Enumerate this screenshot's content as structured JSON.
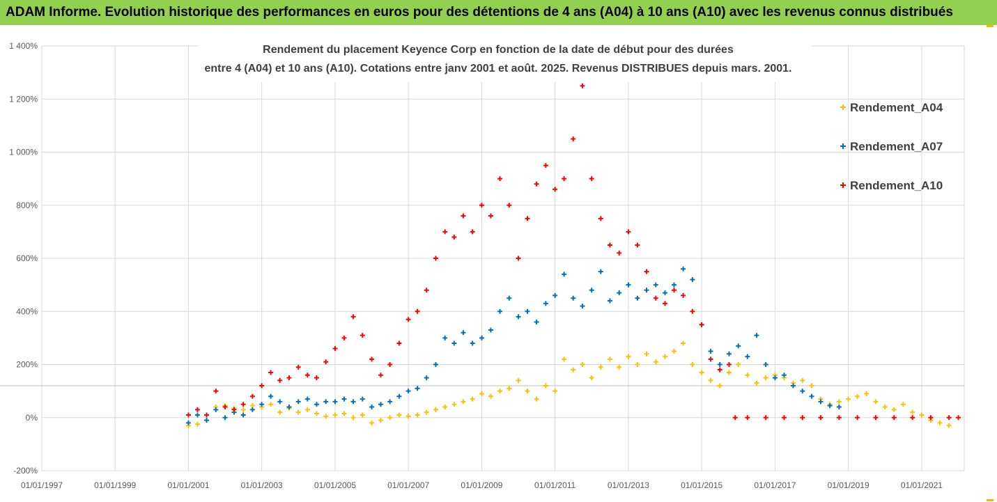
{
  "banner": {
    "title": "ADAM Informe. Evolution historique des performances en euros pour des détentions de 4 ans (A04) à 10 ans (A10) avec les revenus connus distribués"
  },
  "colors": {
    "banner_bg": "#92d050",
    "gridline": "#d9d9d9",
    "reference_line": "#bfbfbf",
    "series_A04": "#ffc000",
    "series_A07": "#0070c0",
    "series_A10": "#ff0000"
  },
  "chart_data": {
    "type": "scatter",
    "title": "Rendement du placement Keyence Corp en fonction de la date de début pour des durées",
    "subtitle": "entre 4 (A04) et 10 ans (A10). Cotations entre janv 2001 et août. 2025. Revenus DISTRIBUES depuis mars. 2001.",
    "xlabel": "",
    "ylabel": "",
    "x_axis": "date",
    "xlim": [
      "1997-01-01",
      "2022-03-01"
    ],
    "x_ticks": [
      "1997-01-01",
      "1999-01-01",
      "2001-01-01",
      "2003-01-01",
      "2005-01-01",
      "2007-01-01",
      "2009-01-01",
      "2011-01-01",
      "2013-01-01",
      "2015-01-01",
      "2017-01-01",
      "2019-01-01",
      "2021-01-01"
    ],
    "x_tick_labels": [
      "01/01/1997",
      "01/01/1999",
      "01/01/2001",
      "01/01/2003",
      "01/01/2005",
      "01/01/2007",
      "01/01/2009",
      "01/01/2011",
      "01/01/2013",
      "01/01/2015",
      "01/01/2017",
      "01/01/2019",
      "01/01/2021"
    ],
    "ylim": [
      -200,
      1400
    ],
    "y_ticks": [
      -200,
      0,
      200,
      400,
      600,
      800,
      1000,
      1200,
      1400
    ],
    "y_tick_labels": [
      "-200%",
      "0%",
      "200%",
      "400%",
      "600%",
      "800%",
      "1 000%",
      "1 200%",
      "1 400%"
    ],
    "grid": true,
    "reference_line_y": 120,
    "legend_position": "right",
    "marker": "+",
    "series": [
      {
        "name": "Rendement_A04",
        "color": "#ffc000",
        "points": [
          [
            "2001-01-01",
            -30
          ],
          [
            "2001-04-01",
            -25
          ],
          [
            "2001-07-01",
            -10
          ],
          [
            "2001-10-01",
            40
          ],
          [
            "2002-01-01",
            45
          ],
          [
            "2002-04-01",
            35
          ],
          [
            "2002-07-01",
            30
          ],
          [
            "2002-10-01",
            45
          ],
          [
            "2003-01-01",
            40
          ],
          [
            "2003-04-01",
            50
          ],
          [
            "2003-07-01",
            20
          ],
          [
            "2003-10-01",
            35
          ],
          [
            "2004-01-01",
            20
          ],
          [
            "2004-04-01",
            30
          ],
          [
            "2004-07-01",
            15
          ],
          [
            "2004-10-01",
            5
          ],
          [
            "2005-01-01",
            10
          ],
          [
            "2005-04-01",
            15
          ],
          [
            "2005-07-01",
            0
          ],
          [
            "2005-10-01",
            10
          ],
          [
            "2006-01-01",
            -20
          ],
          [
            "2006-04-01",
            -10
          ],
          [
            "2006-07-01",
            0
          ],
          [
            "2006-10-01",
            10
          ],
          [
            "2007-01-01",
            5
          ],
          [
            "2007-04-01",
            10
          ],
          [
            "2007-07-01",
            20
          ],
          [
            "2007-10-01",
            30
          ],
          [
            "2008-01-01",
            40
          ],
          [
            "2008-04-01",
            50
          ],
          [
            "2008-07-01",
            60
          ],
          [
            "2008-10-01",
            70
          ],
          [
            "2009-01-01",
            90
          ],
          [
            "2009-04-01",
            80
          ],
          [
            "2009-07-01",
            100
          ],
          [
            "2009-10-01",
            110
          ],
          [
            "2010-01-01",
            140
          ],
          [
            "2010-04-01",
            100
          ],
          [
            "2010-07-01",
            70
          ],
          [
            "2010-10-01",
            120
          ],
          [
            "2011-01-01",
            100
          ],
          [
            "2011-04-01",
            220
          ],
          [
            "2011-07-01",
            180
          ],
          [
            "2011-10-01",
            200
          ],
          [
            "2012-01-01",
            150
          ],
          [
            "2012-04-01",
            190
          ],
          [
            "2012-07-01",
            220
          ],
          [
            "2012-10-01",
            190
          ],
          [
            "2013-01-01",
            230
          ],
          [
            "2013-04-01",
            200
          ],
          [
            "2013-07-01",
            240
          ],
          [
            "2013-10-01",
            210
          ],
          [
            "2014-01-01",
            230
          ],
          [
            "2014-04-01",
            250
          ],
          [
            "2014-07-01",
            280
          ],
          [
            "2014-10-01",
            200
          ],
          [
            "2015-01-01",
            170
          ],
          [
            "2015-04-01",
            140
          ],
          [
            "2015-07-01",
            120
          ],
          [
            "2015-10-01",
            170
          ],
          [
            "2016-01-01",
            200
          ],
          [
            "2016-04-01",
            160
          ],
          [
            "2016-07-01",
            130
          ],
          [
            "2016-10-01",
            150
          ],
          [
            "2017-01-01",
            160
          ],
          [
            "2017-04-01",
            150
          ],
          [
            "2017-07-01",
            130
          ],
          [
            "2017-10-01",
            140
          ],
          [
            "2018-01-01",
            120
          ],
          [
            "2018-04-01",
            70
          ],
          [
            "2018-07-01",
            50
          ],
          [
            "2018-10-01",
            60
          ],
          [
            "2019-01-01",
            70
          ],
          [
            "2019-04-01",
            80
          ],
          [
            "2019-07-01",
            90
          ],
          [
            "2019-10-01",
            60
          ],
          [
            "2020-01-01",
            40
          ],
          [
            "2020-04-01",
            30
          ],
          [
            "2020-07-01",
            50
          ],
          [
            "2020-10-01",
            20
          ],
          [
            "2021-01-01",
            10
          ],
          [
            "2021-04-01",
            -10
          ],
          [
            "2021-07-01",
            -20
          ],
          [
            "2021-10-01",
            -30
          ]
        ]
      },
      {
        "name": "Rendement_A07",
        "color": "#0070c0",
        "points": [
          [
            "2001-01-01",
            -20
          ],
          [
            "2001-04-01",
            10
          ],
          [
            "2001-07-01",
            -10
          ],
          [
            "2001-10-01",
            30
          ],
          [
            "2002-01-01",
            0
          ],
          [
            "2002-04-01",
            20
          ],
          [
            "2002-07-01",
            10
          ],
          [
            "2002-10-01",
            30
          ],
          [
            "2003-01-01",
            50
          ],
          [
            "2003-04-01",
            80
          ],
          [
            "2003-07-01",
            60
          ],
          [
            "2003-10-01",
            40
          ],
          [
            "2004-01-01",
            60
          ],
          [
            "2004-04-01",
            70
          ],
          [
            "2004-07-01",
            50
          ],
          [
            "2004-10-01",
            60
          ],
          [
            "2005-01-01",
            60
          ],
          [
            "2005-04-01",
            70
          ],
          [
            "2005-07-01",
            60
          ],
          [
            "2005-10-01",
            70
          ],
          [
            "2006-01-01",
            40
          ],
          [
            "2006-04-01",
            50
          ],
          [
            "2006-07-01",
            60
          ],
          [
            "2006-10-01",
            80
          ],
          [
            "2007-01-01",
            100
          ],
          [
            "2007-04-01",
            110
          ],
          [
            "2007-07-01",
            150
          ],
          [
            "2007-10-01",
            200
          ],
          [
            "2008-01-01",
            300
          ],
          [
            "2008-04-01",
            280
          ],
          [
            "2008-07-01",
            320
          ],
          [
            "2008-10-01",
            280
          ],
          [
            "2009-01-01",
            300
          ],
          [
            "2009-04-01",
            330
          ],
          [
            "2009-07-01",
            400
          ],
          [
            "2009-10-01",
            450
          ],
          [
            "2010-01-01",
            380
          ],
          [
            "2010-04-01",
            400
          ],
          [
            "2010-07-01",
            360
          ],
          [
            "2010-10-01",
            430
          ],
          [
            "2011-01-01",
            460
          ],
          [
            "2011-04-01",
            540
          ],
          [
            "2011-07-01",
            450
          ],
          [
            "2011-10-01",
            420
          ],
          [
            "2012-01-01",
            480
          ],
          [
            "2012-04-01",
            550
          ],
          [
            "2012-07-01",
            440
          ],
          [
            "2012-10-01",
            470
          ],
          [
            "2013-01-01",
            500
          ],
          [
            "2013-04-01",
            450
          ],
          [
            "2013-07-01",
            480
          ],
          [
            "2013-10-01",
            500
          ],
          [
            "2014-01-01",
            470
          ],
          [
            "2014-04-01",
            500
          ],
          [
            "2014-07-01",
            560
          ],
          [
            "2014-10-01",
            520
          ],
          [
            "2015-01-01",
            350
          ],
          [
            "2015-04-01",
            250
          ],
          [
            "2015-07-01",
            200
          ],
          [
            "2015-10-01",
            240
          ],
          [
            "2016-01-01",
            270
          ],
          [
            "2016-04-01",
            230
          ],
          [
            "2016-07-01",
            310
          ],
          [
            "2016-10-01",
            200
          ],
          [
            "2017-01-01",
            150
          ],
          [
            "2017-04-01",
            160
          ],
          [
            "2017-07-01",
            120
          ],
          [
            "2017-10-01",
            100
          ],
          [
            "2018-01-01",
            80
          ],
          [
            "2018-04-01",
            60
          ],
          [
            "2018-07-01",
            45
          ],
          [
            "2018-10-01",
            40
          ]
        ]
      },
      {
        "name": "Rendement_A10",
        "color": "#ff0000",
        "points": [
          [
            "2001-01-01",
            10
          ],
          [
            "2001-04-01",
            30
          ],
          [
            "2001-07-01",
            10
          ],
          [
            "2001-10-01",
            100
          ],
          [
            "2002-01-01",
            40
          ],
          [
            "2002-04-01",
            30
          ],
          [
            "2002-07-01",
            50
          ],
          [
            "2002-10-01",
            80
          ],
          [
            "2003-01-01",
            120
          ],
          [
            "2003-04-01",
            170
          ],
          [
            "2003-07-01",
            140
          ],
          [
            "2003-10-01",
            150
          ],
          [
            "2004-01-01",
            190
          ],
          [
            "2004-04-01",
            160
          ],
          [
            "2004-07-01",
            150
          ],
          [
            "2004-10-01",
            210
          ],
          [
            "2005-01-01",
            260
          ],
          [
            "2005-04-01",
            300
          ],
          [
            "2005-07-01",
            380
          ],
          [
            "2005-10-01",
            310
          ],
          [
            "2006-01-01",
            220
          ],
          [
            "2006-04-01",
            160
          ],
          [
            "2006-07-01",
            200
          ],
          [
            "2006-10-01",
            280
          ],
          [
            "2007-01-01",
            370
          ],
          [
            "2007-04-01",
            400
          ],
          [
            "2007-07-01",
            480
          ],
          [
            "2007-10-01",
            600
          ],
          [
            "2008-01-01",
            700
          ],
          [
            "2008-04-01",
            680
          ],
          [
            "2008-07-01",
            760
          ],
          [
            "2008-10-01",
            700
          ],
          [
            "2009-01-01",
            800
          ],
          [
            "2009-04-01",
            760
          ],
          [
            "2009-07-01",
            900
          ],
          [
            "2009-10-01",
            800
          ],
          [
            "2010-01-01",
            600
          ],
          [
            "2010-04-01",
            750
          ],
          [
            "2010-07-01",
            880
          ],
          [
            "2010-10-01",
            950
          ],
          [
            "2011-01-01",
            860
          ],
          [
            "2011-04-01",
            900
          ],
          [
            "2011-07-01",
            1050
          ],
          [
            "2011-10-01",
            1250
          ],
          [
            "2012-01-01",
            900
          ],
          [
            "2012-04-01",
            750
          ],
          [
            "2012-07-01",
            650
          ],
          [
            "2012-10-01",
            620
          ],
          [
            "2013-01-01",
            700
          ],
          [
            "2013-04-01",
            650
          ],
          [
            "2013-07-01",
            550
          ],
          [
            "2013-10-01",
            450
          ],
          [
            "2014-01-01",
            430
          ],
          [
            "2014-04-01",
            480
          ],
          [
            "2014-07-01",
            460
          ],
          [
            "2014-10-01",
            400
          ],
          [
            "2015-01-01",
            350
          ],
          [
            "2015-04-01",
            220
          ],
          [
            "2015-07-01",
            180
          ],
          [
            "2015-10-01",
            200
          ],
          [
            "2015-12-01",
            0
          ],
          [
            "2016-04-01",
            0
          ],
          [
            "2016-10-01",
            0
          ],
          [
            "2017-04-01",
            0
          ],
          [
            "2017-10-01",
            0
          ],
          [
            "2018-04-01",
            0
          ],
          [
            "2018-10-01",
            0
          ],
          [
            "2019-04-01",
            0
          ],
          [
            "2019-10-01",
            0
          ],
          [
            "2020-04-01",
            0
          ],
          [
            "2020-10-01",
            0
          ],
          [
            "2021-04-01",
            0
          ],
          [
            "2021-10-01",
            0
          ],
          [
            "2022-01-01",
            0
          ]
        ]
      }
    ]
  }
}
